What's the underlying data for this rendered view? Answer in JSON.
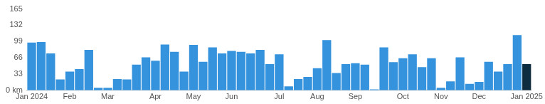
{
  "chart_data": {
    "type": "bar",
    "categories": [
      "Jan 2024",
      null,
      null,
      null,
      "Feb",
      null,
      null,
      null,
      "Mar",
      null,
      null,
      null,
      null,
      "Apr",
      null,
      null,
      null,
      "May",
      null,
      null,
      null,
      "Jun",
      null,
      null,
      null,
      null,
      "Jul",
      null,
      null,
      null,
      "Aug",
      null,
      null,
      null,
      "Sep",
      null,
      null,
      null,
      null,
      "Oct",
      null,
      null,
      null,
      "Nov",
      null,
      null,
      null,
      "Dec",
      null,
      null,
      null,
      null,
      "Jan 2025"
    ],
    "values": [
      97,
      98,
      75,
      22,
      38,
      43,
      82,
      5,
      5,
      23,
      22,
      52,
      67,
      60,
      93,
      78,
      38,
      92,
      58,
      87,
      75,
      80,
      78,
      75,
      82,
      53,
      73,
      8,
      23,
      27,
      45,
      102,
      35,
      53,
      55,
      52,
      2,
      87,
      57,
      65,
      73,
      47,
      65,
      5,
      18,
      67,
      13,
      17,
      58,
      38,
      53,
      112,
      53
    ],
    "colors": [
      "#3592dd",
      "#3592dd",
      "#3592dd",
      "#3592dd",
      "#3592dd",
      "#3592dd",
      "#3592dd",
      "#3592dd",
      "#3592dd",
      "#3592dd",
      "#3592dd",
      "#3592dd",
      "#3592dd",
      "#3592dd",
      "#3592dd",
      "#3592dd",
      "#3592dd",
      "#3592dd",
      "#3592dd",
      "#3592dd",
      "#3592dd",
      "#3592dd",
      "#3592dd",
      "#3592dd",
      "#3592dd",
      "#3592dd",
      "#3592dd",
      "#3592dd",
      "#3592dd",
      "#3592dd",
      "#3592dd",
      "#3592dd",
      "#3592dd",
      "#3592dd",
      "#3592dd",
      "#3592dd",
      "#3592dd",
      "#3592dd",
      "#3592dd",
      "#3592dd",
      "#3592dd",
      "#3592dd",
      "#3592dd",
      "#3592dd",
      "#3592dd",
      "#3592dd",
      "#3592dd",
      "#3592dd",
      "#3592dd",
      "#3592dd",
      "#3592dd",
      "#3592dd",
      "#0e2c40"
    ],
    "ylim": [
      0,
      165
    ],
    "yticks": [
      {
        "value": 0,
        "label": "0 km"
      },
      33,
      66,
      99,
      132,
      165
    ],
    "grid": false
  }
}
